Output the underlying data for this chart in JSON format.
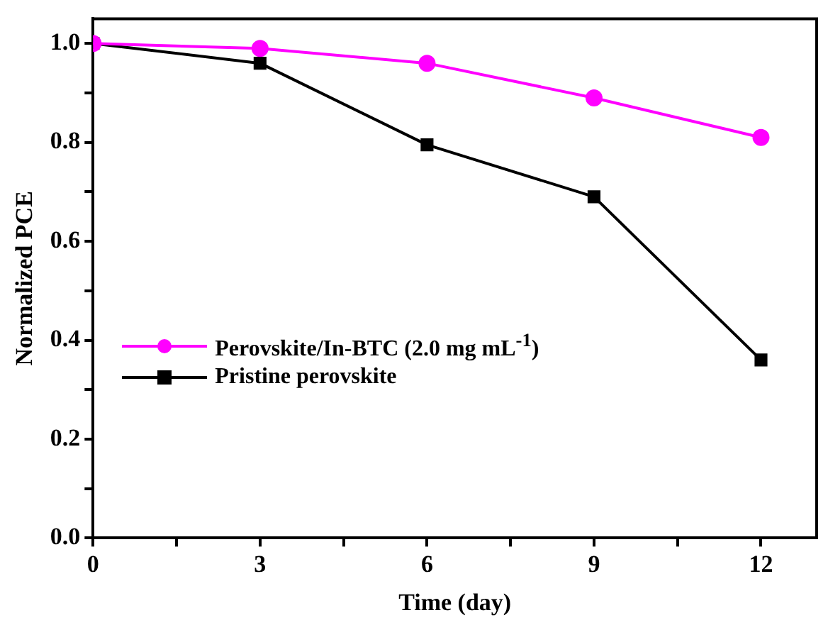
{
  "chart_data": {
    "type": "line",
    "xlabel": "Time (day)",
    "ylabel": "Normalized PCE",
    "x": [
      0,
      3,
      6,
      9,
      12
    ],
    "series": [
      {
        "name": "Perovskite/In-BTC (2.0 mg mL$^{-1}$)",
        "color": "#ff00ff",
        "marker": "circle",
        "values": [
          1.0,
          0.99,
          0.96,
          0.89,
          0.81
        ]
      },
      {
        "name": "Pristine perovskite",
        "color": "#000000",
        "marker": "square",
        "values": [
          1.0,
          0.96,
          0.795,
          0.69,
          0.36
        ]
      }
    ],
    "xlim": [
      0,
      13
    ],
    "xticks": [
      0,
      {
        "value": 1.5,
        "label": null
      },
      3,
      {
        "value": 4.5,
        "label": null
      },
      6,
      {
        "value": 7.5,
        "label": null
      },
      9,
      {
        "value": 10.5,
        "label": null
      },
      12
    ],
    "ylim": [
      0,
      1.05
    ],
    "yticks": [
      {
        "value": 0,
        "label": "0.0"
      },
      {
        "value": 0.1,
        "label": null
      },
      0.2,
      {
        "value": 0.3,
        "label": null
      },
      0.4,
      {
        "value": 0.5,
        "label": null
      },
      0.6,
      {
        "value": 0.7,
        "label": null
      },
      0.8,
      {
        "value": 0.9,
        "label": null
      },
      {
        "value": 1,
        "label": "1.0"
      }
    ],
    "grid": false,
    "legend": "left",
    "line_style": "solid"
  }
}
